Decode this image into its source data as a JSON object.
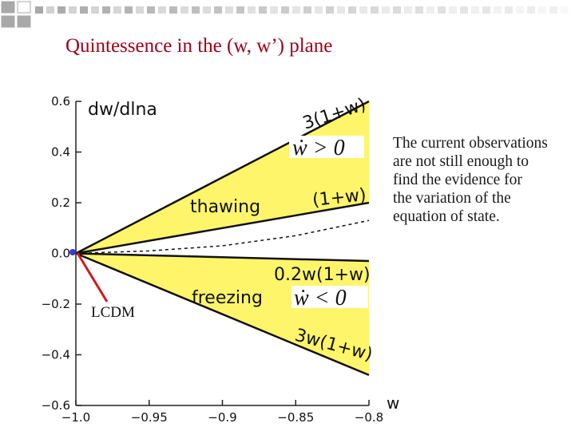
{
  "slide": {
    "title": "Quintessence in the (w, w’) plane",
    "note_lines": [
      "The current observations",
      "are not still enough to",
      "find the evidence for",
      "the variation of the",
      "equation of state."
    ],
    "colors": {
      "title": "#a0001a",
      "decoration": "#a9a9a9",
      "region_fill": "#fff56b",
      "pointer": "#d11a1a"
    }
  },
  "chart_data": {
    "type": "line",
    "xlabel": "w",
    "ylabel": "dw/dlna",
    "xlim": [
      -1.0,
      -0.8
    ],
    "ylim": [
      -0.6,
      0.6
    ],
    "x_ticks": [
      -1.0,
      -0.95,
      -0.9,
      -0.85,
      -0.8
    ],
    "x_tick_labels": [
      "−1.0",
      "−0.95",
      "−0.9",
      "−0.85",
      "−0.8"
    ],
    "y_ticks": [
      0.6,
      0.4,
      0.2,
      0.0,
      -0.2,
      -0.4,
      -0.6
    ],
    "y_tick_labels": [
      "0.6",
      "0.4",
      "0.2",
      "0.0",
      "−0.2",
      "−0.4",
      "−0.6"
    ],
    "grid": false,
    "boundary_lines": [
      {
        "label": "3(1+w)",
        "x": [
          -1.0,
          -0.8
        ],
        "y": [
          0.0,
          0.6
        ]
      },
      {
        "label": "(1+w)",
        "x": [
          -1.0,
          -0.8
        ],
        "y": [
          0.0,
          0.2
        ]
      },
      {
        "label": "",
        "style": "dashed",
        "x": [
          -1.0,
          -0.95,
          -0.9,
          -0.85,
          -0.8
        ],
        "y": [
          0.0,
          0.01,
          0.03,
          0.07,
          0.13
        ]
      },
      {
        "label": "0.2w(1+w)",
        "x": [
          -1.0,
          -0.8
        ],
        "y": [
          0.0,
          -0.03
        ]
      },
      {
        "label": "3w(1+w)",
        "x": [
          -1.0,
          -0.8
        ],
        "y": [
          0.0,
          -0.48
        ]
      }
    ],
    "regions": [
      {
        "name": "thawing",
        "between": [
          "(1+w)",
          "3(1+w)"
        ],
        "condition": "ẇ > 0"
      },
      {
        "name": "freezing",
        "between": [
          "3w(1+w)",
          "0.2w(1+w)"
        ],
        "condition": "ẇ < 0"
      }
    ],
    "annotations": [
      {
        "text": "LCDM",
        "point": [
          -1.0,
          0.0
        ]
      }
    ]
  }
}
